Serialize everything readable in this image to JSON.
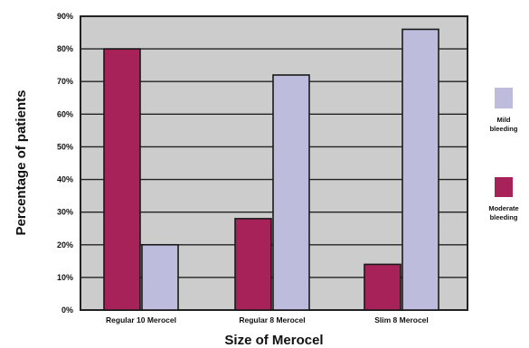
{
  "chart_data": {
    "type": "bar",
    "title": "",
    "xlabel": "Size of Merocel",
    "ylabel": "Percentage of patients",
    "ylim": [
      0,
      90
    ],
    "y_ticks": [
      0,
      10,
      20,
      30,
      40,
      50,
      60,
      70,
      80,
      90
    ],
    "y_tick_labels": [
      "0%",
      "10%",
      "20%",
      "30%",
      "40%",
      "50%",
      "60%",
      "70%",
      "80%",
      "90%"
    ],
    "categories": [
      "Regular 10 Merocel",
      "Regular 8 Merocel",
      "Slim 8 Merocel"
    ],
    "series": [
      {
        "name": "Moderate bleeding",
        "values": [
          80,
          28,
          14
        ],
        "color": "#a8225a"
      },
      {
        "name": "Mild bleeding",
        "values": [
          20,
          72,
          86
        ],
        "color": "#bdbcdc"
      }
    ],
    "legend_order": [
      1,
      0
    ],
    "legend_position": "right",
    "grid": true,
    "plot_background": "#cccccc"
  }
}
